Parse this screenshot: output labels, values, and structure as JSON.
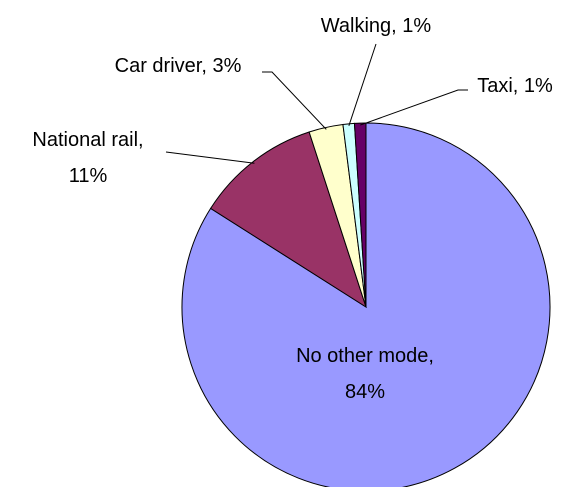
{
  "chart_data": {
    "type": "pie",
    "labels": [
      "No other mode, 84%",
      "National rail, 11%",
      "Car driver, 3%",
      "Walking, 1%",
      "Taxi, 1%"
    ],
    "values": [
      84,
      11,
      3,
      1,
      1
    ],
    "colors": [
      "#9999ff",
      "#993366",
      "#ffffcc",
      "#ccffff",
      "#660066"
    ]
  }
}
